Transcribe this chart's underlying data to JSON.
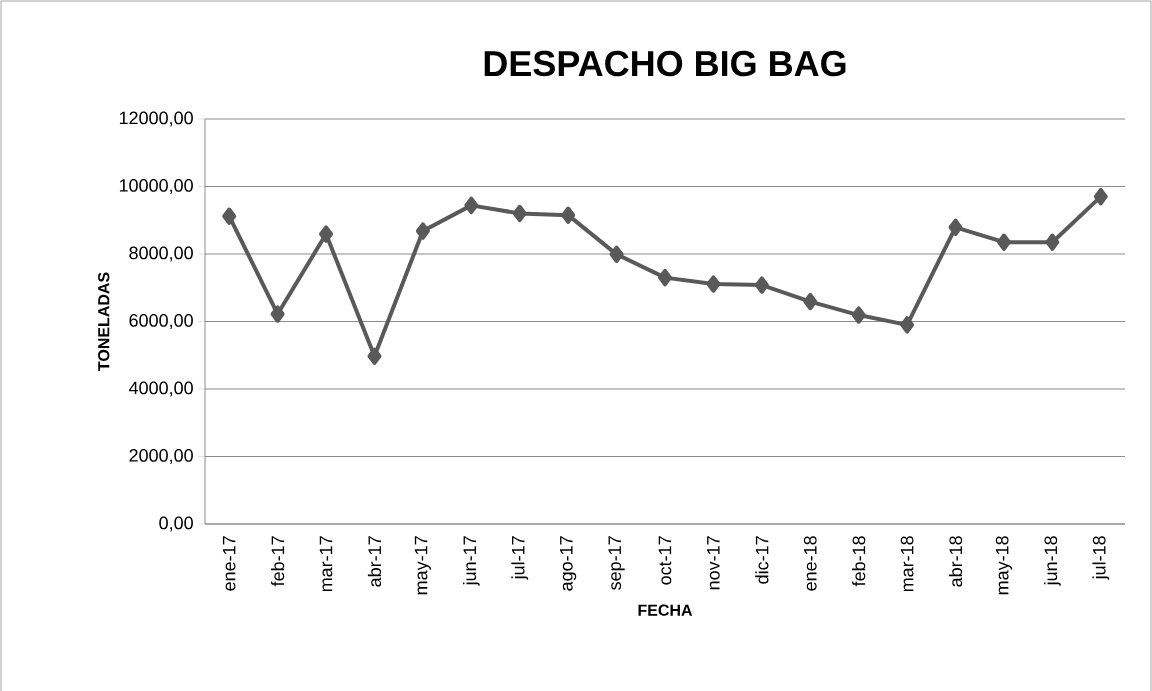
{
  "chart_data": {
    "type": "line",
    "title": "DESPACHO BIG BAG",
    "xlabel": "FECHA",
    "ylabel": "TONELADAS",
    "categories": [
      "ene-17",
      "feb-17",
      "mar-17",
      "abr-17",
      "may-17",
      "jun-17",
      "jul-17",
      "ago-17",
      "sep-17",
      "oct-17",
      "nov-17",
      "dic-17",
      "ene-18",
      "feb-18",
      "mar-18",
      "abr-18",
      "may-18",
      "jun-18",
      "jul-18"
    ],
    "series": [
      {
        "color": "#595959",
        "values": [
          9120,
          6220,
          8590,
          4970,
          8680,
          9440,
          9200,
          9150,
          7990,
          7300,
          7110,
          7080,
          6590,
          6190,
          5900,
          8790,
          8350,
          8350,
          9700
        ]
      }
    ],
    "ylim": [
      0,
      12000
    ],
    "yticks": [
      {
        "value": 0,
        "label": "0,00"
      },
      {
        "value": 2000,
        "label": "2000,00"
      },
      {
        "value": 4000,
        "label": "4000,00"
      },
      {
        "value": 6000,
        "label": "6000,00"
      },
      {
        "value": 8000,
        "label": "8000,00"
      },
      {
        "value": 10000,
        "label": "10000,00"
      },
      {
        "value": 12000,
        "label": "12000,00"
      }
    ],
    "grid": "y",
    "marker": "diamond",
    "line_style": "solid"
  }
}
